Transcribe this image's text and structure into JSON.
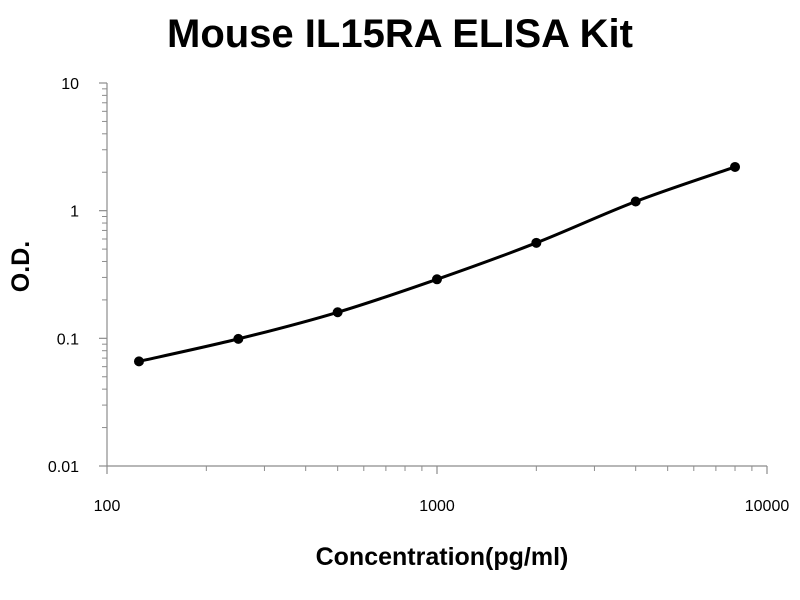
{
  "chart_data": {
    "type": "line",
    "title": "Mouse IL15RA ELISA Kit",
    "xlabel": "Concentration(pg/ml)",
    "ylabel": "O.D.",
    "xscale": "log",
    "yscale": "log",
    "xlim": [
      100,
      10000
    ],
    "ylim": [
      0.01,
      10
    ],
    "x_ticks": [
      100,
      1000,
      10000
    ],
    "x_tick_labels": [
      "100",
      "1000",
      "10000"
    ],
    "y_ticks": [
      0.01,
      0.1,
      1,
      10
    ],
    "y_tick_labels": [
      "0.01",
      "0.1",
      "1",
      "10"
    ],
    "grid": false,
    "legend": "none",
    "series": [
      {
        "x": [
          125,
          250,
          500,
          1000,
          2000,
          4000,
          8000
        ],
        "y": [
          0.066,
          0.099,
          0.16,
          0.29,
          0.56,
          1.18,
          2.2
        ],
        "marker": "circle",
        "color": "#000000"
      }
    ]
  }
}
